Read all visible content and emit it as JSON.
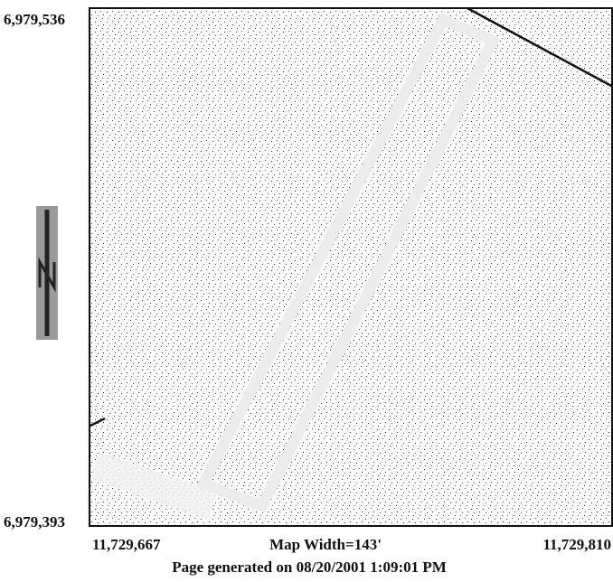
{
  "map": {
    "y_labels": {
      "top": "6,979,536",
      "bottom": "6,979,393"
    },
    "x_labels": {
      "left": "11,729,667",
      "right": "11,729,810"
    },
    "map_width": "Map Width=143'",
    "footer": "Page generated on 08/20/2001 1:09:01 PM"
  }
}
